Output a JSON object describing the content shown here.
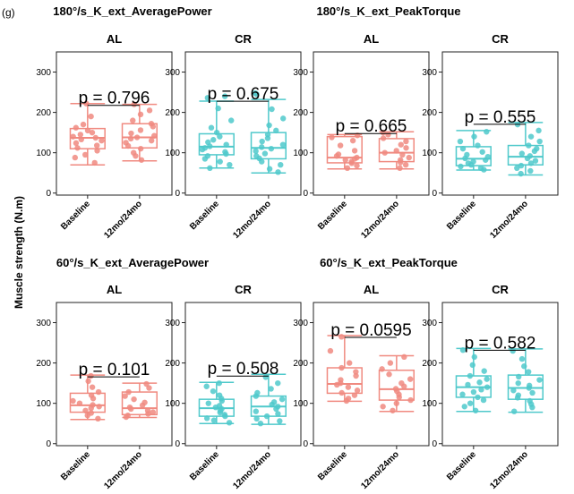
{
  "panel_label": "(g)",
  "y_axis_label": "Muscle strength (N.m)",
  "colors": {
    "AL": "#F08A80",
    "CR": "#4FC9CB"
  },
  "chart_data": {
    "type": "boxplot",
    "categories": [
      "Baseline",
      "12mo/24mo"
    ],
    "ylim": [
      -5,
      350
    ],
    "yticks": [
      0,
      100,
      200,
      300
    ],
    "grid": false,
    "facets": [
      {
        "title": "180°/s_K_ext_AveragePower",
        "panels": [
          {
            "group": "AL",
            "p_value": "p = 0.796",
            "boxes": [
              {
                "category": "Baseline",
                "min": 70,
                "q1": 110,
                "median": 137,
                "q3": 160,
                "max": 222,
                "points": [
                  75,
                  88,
                  95,
                  105,
                  112,
                  118,
                  124,
                  130,
                  133,
                  137,
                  140,
                  145,
                  150,
                  155,
                  162,
                  170,
                  190,
                  222
                ]
              },
              {
                "category": "12mo/24mo",
                "min": 80,
                "q1": 112,
                "median": 138,
                "q3": 172,
                "max": 220,
                "points": [
                  82,
                  92,
                  100,
                  110,
                  117,
                  125,
                  130,
                  135,
                  138,
                  142,
                  148,
                  156,
                  165,
                  172,
                  180,
                  195,
                  205,
                  220
                ]
              }
            ]
          },
          {
            "group": "CR",
            "p_value": "p = 0.675",
            "boxes": [
              {
                "category": "Baseline",
                "min": 62,
                "q1": 95,
                "median": 115,
                "q3": 147,
                "max": 228,
                "points": [
                  62,
                  70,
                  78,
                  85,
                  92,
                  97,
                  102,
                  108,
                  112,
                  116,
                  120,
                  126,
                  132,
                  140,
                  150,
                  162,
                  180,
                  210,
                  236,
                  240
                ]
              },
              {
                "category": "12mo/24mo",
                "min": 50,
                "q1": 85,
                "median": 112,
                "q3": 150,
                "max": 232,
                "points": [
                  52,
                  60,
                  70,
                  78,
                  86,
                  92,
                  98,
                  104,
                  110,
                  114,
                  120,
                  128,
                  136,
                  145,
                  155,
                  168,
                  185,
                  208,
                  245,
                  248
                ]
              }
            ]
          }
        ]
      },
      {
        "title": "180°/s_K_ext_PeakTorque",
        "panels": [
          {
            "group": "AL",
            "p_value": "p = 0.665",
            "boxes": [
              {
                "category": "Baseline",
                "min": 60,
                "q1": 75,
                "median": 88,
                "q3": 140,
                "max": 145,
                "points": [
                  62,
                  68,
                  74,
                  78,
                  82,
                  85,
                  88,
                  92,
                  96,
                  105,
                  118,
                  130,
                  138,
                  143
                ]
              },
              {
                "category": "12mo/24mo",
                "min": 60,
                "q1": 78,
                "median": 100,
                "q3": 135,
                "max": 152,
                "points": [
                  62,
                  70,
                  76,
                  82,
                  88,
                  95,
                  100,
                  105,
                  112,
                  120,
                  128,
                  136,
                  145,
                  150
                ]
              }
            ]
          },
          {
            "group": "CR",
            "p_value": "p = 0.555",
            "boxes": [
              {
                "category": "Baseline",
                "min": 57,
                "q1": 68,
                "median": 85,
                "q3": 115,
                "max": 155,
                "points": [
                  58,
                  62,
                  66,
                  70,
                  74,
                  78,
                  82,
                  86,
                  90,
                  95,
                  102,
                  110,
                  118,
                  128,
                  140,
                  152
                ]
              },
              {
                "category": "12mo/24mo",
                "min": 45,
                "q1": 70,
                "median": 90,
                "q3": 118,
                "max": 175,
                "points": [
                  48,
                  55,
                  62,
                  68,
                  74,
                  80,
                  86,
                  92,
                  98,
                  104,
                  110,
                  118,
                  128,
                  140,
                  155,
                  170
                ]
              }
            ]
          }
        ]
      },
      {
        "title": "60°/s_K_ext_AveragePower",
        "panels": [
          {
            "group": "AL",
            "p_value": "p = 0.101",
            "boxes": [
              {
                "category": "Baseline",
                "min": 60,
                "q1": 78,
                "median": 95,
                "q3": 125,
                "max": 170,
                "points": [
                  62,
                  70,
                  76,
                  82,
                  88,
                  92,
                  96,
                  100,
                  106,
                  112,
                  120,
                  128,
                  140,
                  155,
                  168
                ]
              },
              {
                "category": "12mo/24mo",
                "min": 65,
                "q1": 72,
                "median": 88,
                "q3": 128,
                "max": 150,
                "points": [
                  66,
                  70,
                  74,
                  78,
                  82,
                  86,
                  90,
                  95,
                  102,
                  110,
                  118,
                  128,
                  138,
                  148
                ]
              }
            ]
          },
          {
            "group": "CR",
            "p_value": "p = 0.508",
            "boxes": [
              {
                "category": "Baseline",
                "min": 50,
                "q1": 68,
                "median": 88,
                "q3": 110,
                "max": 152,
                "points": [
                  52,
                  58,
                  63,
                  68,
                  72,
                  77,
                  82,
                  86,
                  90,
                  94,
                  100,
                  106,
                  112,
                  120,
                  130,
                  142,
                  150
                ]
              },
              {
                "category": "12mo/24mo",
                "min": 48,
                "q1": 68,
                "median": 92,
                "q3": 118,
                "max": 172,
                "points": [
                  50,
                  56,
                  62,
                  68,
                  74,
                  80,
                  86,
                  92,
                  97,
                  103,
                  110,
                  118,
                  126,
                  136,
                  150,
                  165
                ]
              }
            ]
          }
        ]
      },
      {
        "title": "60°/s_K_ext_PeakTorque",
        "panels": [
          {
            "group": "AL",
            "p_value": "p = 0.0595",
            "boxes": [
              {
                "category": "Baseline",
                "min": 105,
                "q1": 125,
                "median": 148,
                "q3": 188,
                "max": 268,
                "points": [
                  106,
                  112,
                  120,
                  126,
                  132,
                  140,
                  146,
                  150,
                  158,
                  168,
                  178,
                  188,
                  200,
                  230,
                  265
                ]
              },
              {
                "category": "12mo/24mo",
                "min": 80,
                "q1": 108,
                "median": 135,
                "q3": 182,
                "max": 218,
                "points": [
                  82,
                  92,
                  100,
                  108,
                  115,
                  122,
                  130,
                  136,
                  142,
                  150,
                  160,
                  172,
                  185,
                  200,
                  215
                ]
              }
            ]
          },
          {
            "group": "CR",
            "p_value": "p = 0.582",
            "boxes": [
              {
                "category": "Baseline",
                "min": 80,
                "q1": 115,
                "median": 140,
                "q3": 168,
                "max": 236,
                "points": [
                  82,
                  92,
                  100,
                  108,
                  115,
                  122,
                  128,
                  134,
                  140,
                  146,
                  152,
                  160,
                  168,
                  180,
                  195,
                  215,
                  232
                ]
              },
              {
                "category": "12mo/24mo",
                "min": 78,
                "q1": 110,
                "median": 138,
                "q3": 170,
                "max": 235,
                "points": [
                  80,
                  90,
                  98,
                  106,
                  114,
                  120,
                  126,
                  132,
                  138,
                  144,
                  150,
                  158,
                  166,
                  178,
                  192,
                  210,
                  230
                ]
              }
            ]
          }
        ]
      }
    ]
  }
}
